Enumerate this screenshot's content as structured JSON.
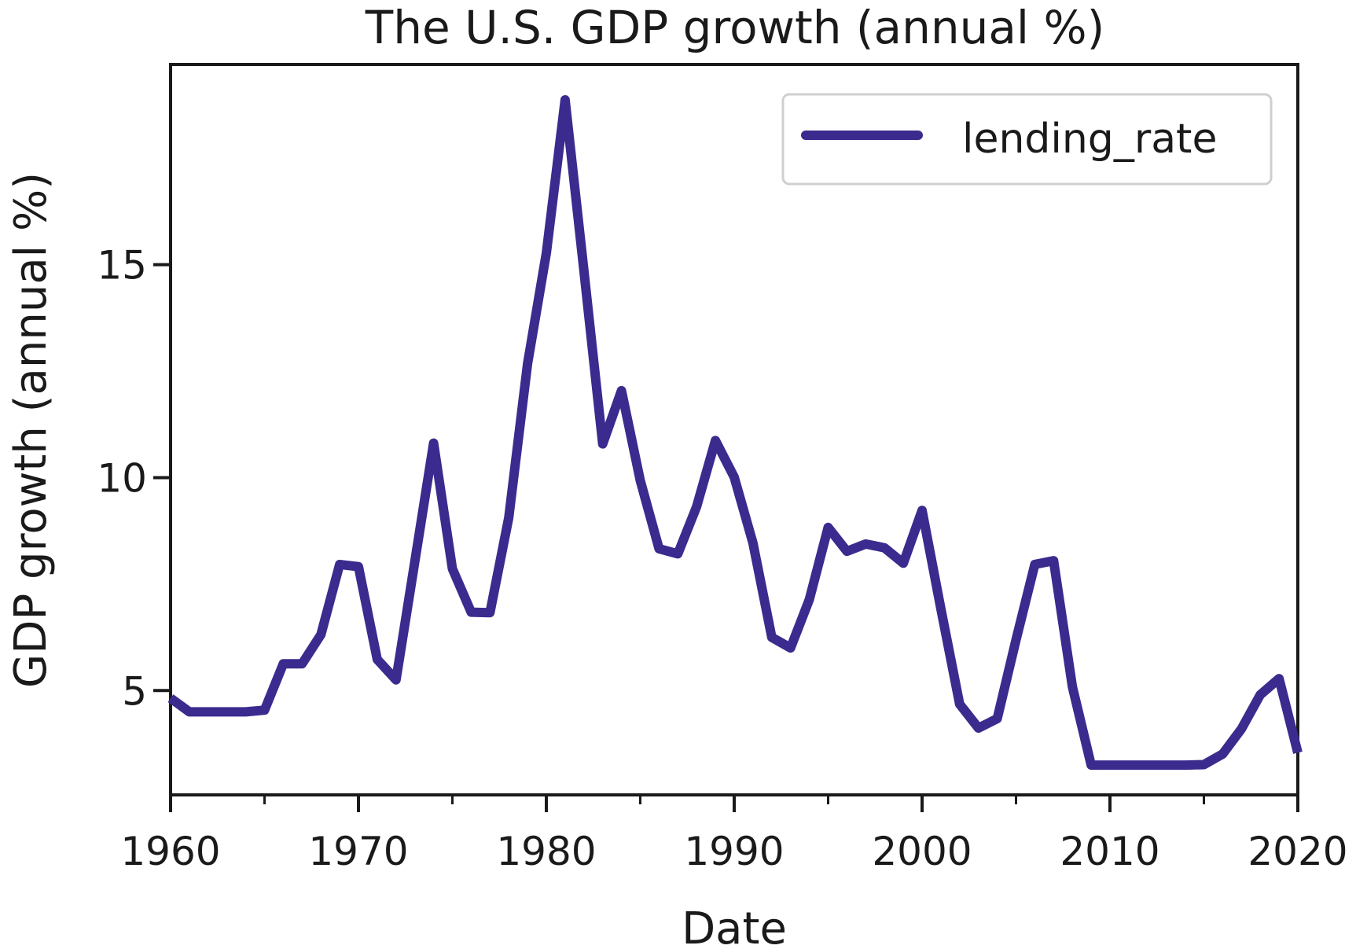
{
  "chart_data": {
    "type": "line",
    "title": "The U.S. GDP growth (annual %)",
    "xlabel": "Date",
    "ylabel": "GDP growth (annual %)",
    "xlim": [
      1960,
      2020
    ],
    "ylim": [
      2.55,
      19.7
    ],
    "xticks": [
      1960,
      1970,
      1980,
      1990,
      2000,
      2010,
      2020
    ],
    "xtick_labels": [
      "1960",
      "1970",
      "1980",
      "1990",
      "2000",
      "2010",
      "2020"
    ],
    "x_minor_ticks": [
      1965,
      1975,
      1985,
      1995,
      2005,
      2015
    ],
    "yticks": [
      5,
      10,
      15
    ],
    "ytick_labels": [
      "5",
      "10",
      "15"
    ],
    "grid": false,
    "legend_position": "upper right",
    "series": [
      {
        "name": "lending_rate",
        "color": "#3b2b8e",
        "x": [
          1960,
          1961,
          1962,
          1963,
          1964,
          1965,
          1966,
          1967,
          1968,
          1969,
          1970,
          1971,
          1972,
          1973,
          1974,
          1975,
          1976,
          1977,
          1978,
          1979,
          1980,
          1981,
          1982,
          1983,
          1984,
          1985,
          1986,
          1987,
          1988,
          1989,
          1990,
          1991,
          1992,
          1993,
          1994,
          1995,
          1996,
          1997,
          1998,
          1999,
          2000,
          2001,
          2002,
          2003,
          2004,
          2005,
          2006,
          2007,
          2008,
          2009,
          2010,
          2011,
          2012,
          2013,
          2014,
          2015,
          2016,
          2017,
          2018,
          2019,
          2020
        ],
        "y": [
          4.82,
          4.5,
          4.5,
          4.5,
          4.5,
          4.54,
          5.63,
          5.63,
          6.31,
          7.96,
          7.91,
          5.73,
          5.25,
          8.03,
          10.81,
          7.86,
          6.84,
          6.83,
          9.06,
          12.67,
          15.27,
          18.87,
          14.86,
          10.79,
          12.04,
          9.93,
          8.33,
          8.21,
          9.32,
          10.87,
          10.01,
          8.46,
          6.25,
          6.0,
          7.14,
          8.83,
          8.27,
          8.44,
          8.35,
          7.99,
          9.23,
          6.92,
          4.68,
          4.12,
          4.34,
          6.19,
          7.96,
          8.05,
          5.09,
          3.25,
          3.25,
          3.25,
          3.25,
          3.25,
          3.25,
          3.26,
          3.51,
          4.1,
          4.9,
          5.28,
          3.54
        ]
      }
    ]
  }
}
